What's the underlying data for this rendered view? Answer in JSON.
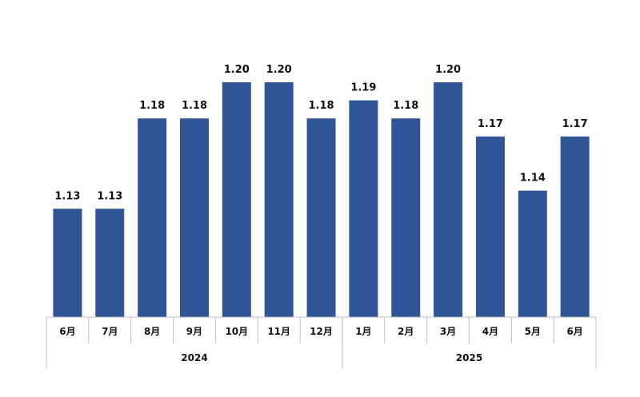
{
  "chart_data": {
    "type": "bar",
    "title": "",
    "xlabel": "",
    "ylabel": "",
    "categories": [
      "6月",
      "7月",
      "8月",
      "9月",
      "10月",
      "11月",
      "12月",
      "1月",
      "2月",
      "3月",
      "4月",
      "5月",
      "6月"
    ],
    "values": [
      1.13,
      1.13,
      1.18,
      1.18,
      1.2,
      1.2,
      1.18,
      1.19,
      1.18,
      1.2,
      1.17,
      1.14,
      1.17
    ],
    "value_labels": [
      "1.13",
      "1.13",
      "1.18",
      "1.18",
      "1.20",
      "1.20",
      "1.18",
      "1.19",
      "1.18",
      "1.20",
      "1.17",
      "1.14",
      "1.17"
    ],
    "groups": [
      {
        "label": "2024",
        "count": 7
      },
      {
        "label": "2025",
        "count": 6
      }
    ],
    "ylim": [
      1.07,
      1.2
    ],
    "bar_color": "#2F5597",
    "grid": false,
    "legend": "none"
  }
}
